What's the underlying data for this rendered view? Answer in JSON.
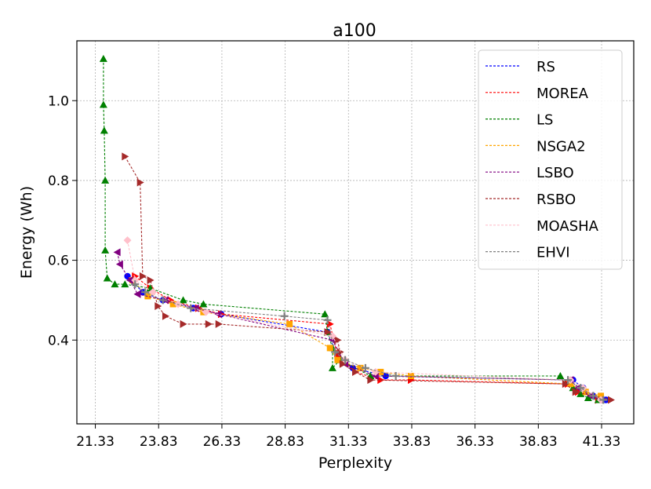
{
  "chart_data": {
    "type": "line",
    "title": "a100",
    "xlabel": "Perplexity",
    "ylabel": "Energy (Wh)",
    "xlim": [
      20.6,
      42.6
    ],
    "ylim": [
      0.19,
      1.15
    ],
    "xticks": [
      21.33,
      23.83,
      26.33,
      28.83,
      31.33,
      33.83,
      36.33,
      38.83,
      41.33
    ],
    "xtick_labels": [
      "21.33",
      "23.83",
      "26.33",
      "28.83",
      "31.33",
      "33.83",
      "36.33",
      "38.83",
      "41.33"
    ],
    "yticks": [
      0.4,
      0.6,
      0.8,
      1.0
    ],
    "ytick_labels": [
      "0.4",
      "0.6",
      "0.8",
      "1.0"
    ],
    "grid": true,
    "legend_position": "top-right",
    "series": [
      {
        "name": "RS",
        "color": "#0000ff",
        "marker": "circle",
        "x": [
          22.6,
          23.2,
          24.0,
          25.2,
          26.3,
          30.5,
          30.9,
          31.5,
          32.8,
          40.2,
          40.6,
          41.0,
          41.5
        ],
        "y": [
          0.56,
          0.52,
          0.5,
          0.48,
          0.465,
          0.42,
          0.36,
          0.33,
          0.31,
          0.3,
          0.28,
          0.26,
          0.25
        ]
      },
      {
        "name": "MOREA",
        "color": "#ff0000",
        "marker": "triangle-right",
        "x": [
          22.9,
          23.5,
          24.3,
          25.4,
          26.3,
          30.6,
          30.9,
          31.6,
          32.6,
          33.8,
          40.0,
          40.4,
          41.2
        ],
        "y": [
          0.56,
          0.53,
          0.5,
          0.48,
          0.465,
          0.44,
          0.36,
          0.32,
          0.3,
          0.3,
          0.29,
          0.27,
          0.25
        ]
      },
      {
        "name": "LS",
        "color": "#008000",
        "marker": "triangle-up",
        "x": [
          21.65,
          21.65,
          21.68,
          21.72,
          21.72,
          21.8,
          22.1,
          22.5,
          23.5,
          24.8,
          25.6,
          30.4,
          30.5,
          30.7,
          30.7,
          31.0,
          32.2,
          39.7,
          40.2,
          40.5,
          40.8,
          41.2
        ],
        "y": [
          1.105,
          0.99,
          0.925,
          0.8,
          0.625,
          0.555,
          0.54,
          0.54,
          0.53,
          0.5,
          0.49,
          0.465,
          0.42,
          0.38,
          0.33,
          0.35,
          0.31,
          0.31,
          0.28,
          0.265,
          0.255,
          0.25
        ]
      },
      {
        "name": "NSGA2",
        "color": "#ffa500",
        "marker": "square",
        "x": [
          22.8,
          23.4,
          24.4,
          25.6,
          29.0,
          30.6,
          30.9,
          31.8,
          32.6,
          33.8,
          40.1,
          40.7,
          41.3
        ],
        "y": [
          0.55,
          0.51,
          0.49,
          0.47,
          0.44,
          0.38,
          0.35,
          0.33,
          0.32,
          0.31,
          0.29,
          0.27,
          0.26
        ]
      },
      {
        "name": "LSBO",
        "color": "#800080",
        "marker": "triangle-left",
        "x": [
          22.2,
          22.3,
          22.7,
          23.0,
          24.1,
          25.3,
          26.2,
          30.7,
          31.2,
          32.4,
          40.1,
          40.4,
          40.9,
          41.3
        ],
        "y": [
          0.62,
          0.59,
          0.55,
          0.515,
          0.5,
          0.48,
          0.465,
          0.4,
          0.34,
          0.31,
          0.3,
          0.28,
          0.26,
          0.25
        ]
      },
      {
        "name": "RSBO",
        "color": "#a52a2a",
        "marker": "triangle-right",
        "x": [
          22.5,
          23.1,
          23.2,
          23.5,
          23.8,
          24.1,
          24.8,
          25.8,
          26.2,
          30.5,
          30.9,
          31.0,
          31.1,
          31.6,
          32.2,
          39.9,
          40.3,
          41.7
        ],
        "y": [
          0.86,
          0.795,
          0.56,
          0.55,
          0.485,
          0.46,
          0.44,
          0.44,
          0.44,
          0.42,
          0.4,
          0.37,
          0.34,
          0.32,
          0.3,
          0.29,
          0.27,
          0.25
        ]
      },
      {
        "name": "MOASHA",
        "color": "#ffc0cb",
        "marker": "diamond",
        "x": [
          22.6,
          22.9,
          23.6,
          24.6,
          25.7,
          30.7,
          31.2,
          32.4,
          40.1,
          40.6,
          41.3
        ],
        "y": [
          0.65,
          0.55,
          0.52,
          0.49,
          0.47,
          0.41,
          0.35,
          0.32,
          0.3,
          0.28,
          0.25
        ]
      },
      {
        "name": "EHVI",
        "color": "#808080",
        "marker": "plus",
        "x": [
          22.9,
          23.3,
          24.0,
          25.1,
          28.8,
          30.5,
          30.8,
          31.2,
          32.0,
          33.2,
          40.0,
          40.5,
          41.0,
          41.4
        ],
        "y": [
          0.54,
          0.52,
          0.5,
          0.48,
          0.46,
          0.45,
          0.37,
          0.35,
          0.33,
          0.31,
          0.3,
          0.28,
          0.26,
          0.25
        ]
      }
    ]
  }
}
